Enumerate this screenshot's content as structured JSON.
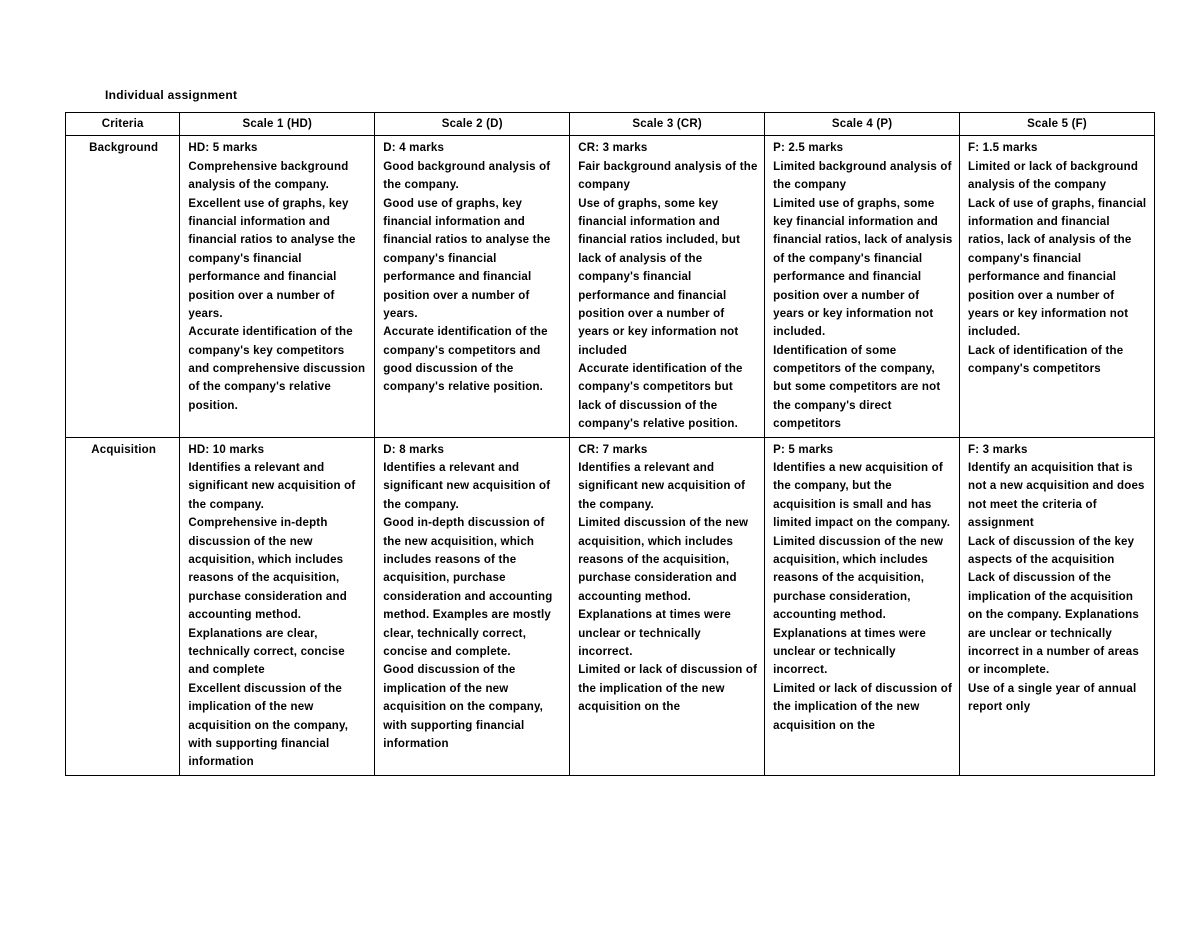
{
  "title": "Individual assignment",
  "table": {
    "columns": [
      "Criteria",
      "Scale 1 (HD)",
      "Scale 2 (D)",
      "Scale 3 (CR)",
      "Scale 4 (P)",
      "Scale 5 (F)"
    ],
    "rows": [
      {
        "criteria": "Background",
        "cells": [
          "HD: 5 marks\nComprehensive background analysis of the company.\nExcellent use of graphs, key financial information and financial ratios to analyse the company's financial performance and financial position over a number of years.\nAccurate identification of the company's key competitors and comprehensive discussion of the company's relative position.",
          "D: 4 marks\nGood background analysis of the company.\nGood use of graphs, key financial information and financial ratios to analyse the company's financial performance and financial position over a number of years.\nAccurate identification of the company's competitors and good discussion of the company's relative position.",
          "CR: 3 marks\nFair background analysis of the company\nUse of graphs, some key financial information and financial ratios included, but lack of analysis of the company's financial performance and financial position over a number of years or key information not included\nAccurate identification of the company's competitors but lack of discussion of the company's relative position.",
          "P: 2.5 marks\nLimited background analysis of the company\nLimited use of graphs, some key financial information and financial ratios, lack of analysis of the company's financial performance and financial position over a number of years or key information not included.\nIdentification of some competitors of the company, but some competitors are not the company's direct competitors",
          "F: 1.5 marks\nLimited or lack of background analysis of the company\nLack of use of graphs, financial information and financial ratios, lack of analysis of the company's financial performance and financial position over a number of years or key information not included.\nLack of identification of the company's competitors"
        ]
      },
      {
        "criteria": "Acquisition",
        "cells": [
          "HD: 10 marks\nIdentifies a relevant and significant new acquisition of the company.\nComprehensive in-depth discussion of the new acquisition, which includes reasons of the acquisition, purchase consideration and accounting method. Explanations are clear, technically correct, concise and complete\nExcellent discussion of the implication of the new acquisition on the company, with supporting financial information",
          "D: 8 marks\nIdentifies a relevant and significant new acquisition of the company.\nGood in-depth discussion of the new acquisition, which includes reasons of the acquisition, purchase consideration and accounting method. Examples are mostly clear, technically correct, concise and complete.\nGood discussion of the implication of the new acquisition on the company, with supporting financial information",
          "CR: 7 marks\nIdentifies a relevant and significant new acquisition of the company.\nLimited discussion of the new acquisition, which includes reasons of the acquisition, purchase consideration and accounting method. Explanations at times were unclear or technically incorrect.\nLimited or lack of discussion of the implication of the new acquisition on the",
          "P: 5 marks\nIdentifies a new acquisition of the company, but the acquisition is small and has limited impact on the company.\nLimited discussion of the new acquisition, which includes reasons of the acquisition, purchase consideration, accounting method. Explanations at times were unclear or technically incorrect.\nLimited or lack of discussion of the implication of the new acquisition on the",
          "F: 3 marks\nIdentify an acquisition that is not a new acquisition and does not meet the criteria of assignment\nLack of discussion of the key aspects of the acquisition\nLack of discussion of the implication of the acquisition on the company. Explanations are unclear or technically incorrect in a number of areas or incomplete.\nUse of a single year of annual report only"
        ]
      }
    ],
    "colors": {
      "background": "#ffffff",
      "text": "#000000",
      "border": "#000000"
    },
    "fontsize_pt": 11.5,
    "title_fontsize_pt": 12,
    "column_widths_pct": [
      10.5,
      17.9,
      17.9,
      17.9,
      17.9,
      17.9
    ]
  }
}
